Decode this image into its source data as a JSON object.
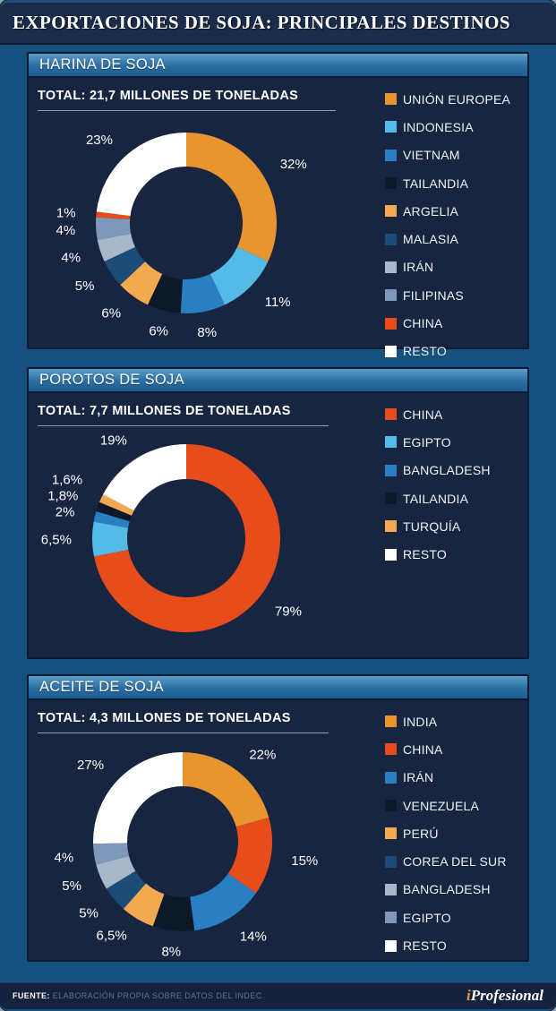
{
  "page": {
    "title": "EXPORTACIONES DE SOJA: PRINCIPALES DESTINOS",
    "footer": {
      "source_label": "FUENTE:",
      "source_text": "ELABORACIÓN PROPIA SOBRE DATOS DEL INDEC",
      "brand_i": "i",
      "brand_rest": "Profesional"
    }
  },
  "colors": {
    "background_blue": "#15507E",
    "panel_body": "#172540",
    "title_band": "#1B2B4A",
    "footer_band": "#14223C",
    "accent_orange": "#E8942F",
    "accent_red": "#E74C1B",
    "text_white": "#FFFFFF"
  },
  "chart_data": [
    {
      "type": "pie",
      "variant": "donut",
      "section_title": "HARINA DE SOJA",
      "total_label": "TOTAL: 21,7 MILLONES DE TONELADAS",
      "total_millones_toneladas": 21.7,
      "legend_position": "right",
      "start_angle_deg": 0,
      "direction": "clockwise",
      "categories": [
        "UNIÓN EUROPEA",
        "INDONESIA",
        "VIETNAM",
        "TAILANDIA",
        "ARGELIA",
        "MALASIA",
        "IRÁN",
        "FILIPINAS",
        "CHINA",
        "RESTO"
      ],
      "values": [
        32,
        11,
        8,
        6,
        6,
        5,
        4,
        4,
        1,
        23
      ],
      "labels": [
        "32%",
        "11%",
        "8%",
        "6%",
        "6%",
        "5%",
        "4%",
        "4%",
        "1%",
        "23%"
      ],
      "colors": [
        "#E8942F",
        "#54BBE8",
        "#2A7FC3",
        "#0D1929",
        "#F3A94F",
        "#1B4B77",
        "#A7B8CB",
        "#7D98BA",
        "#E74C1B",
        "#FFFFFF"
      ]
    },
    {
      "type": "pie",
      "variant": "donut",
      "section_title": "POROTOS DE SOJA",
      "total_label": "TOTAL: 7,7 MILLONES DE TONELADAS",
      "total_millones_toneladas": 7.7,
      "legend_position": "right",
      "start_angle_deg": 0,
      "direction": "clockwise",
      "categories": [
        "CHINA",
        "EGIPTO",
        "BANGLADESH",
        "TAILANDIA",
        "TURQUÍA",
        "RESTO"
      ],
      "values": [
        79,
        6.5,
        2,
        1.8,
        1.6,
        19
      ],
      "labels": [
        "79%",
        "6,5%",
        "2%",
        "1,8%",
        "1,6%",
        "19%"
      ],
      "colors": [
        "#E74C1B",
        "#54BBE8",
        "#2A7FC3",
        "#0D1929",
        "#F3A94F",
        "#FFFFFF"
      ]
    },
    {
      "type": "pie",
      "variant": "donut",
      "section_title": "ACEITE DE SOJA",
      "total_label": "TOTAL: 4,3 MILLONES DE TONELADAS",
      "total_millones_toneladas": 4.3,
      "legend_position": "right",
      "start_angle_deg": 0,
      "direction": "clockwise",
      "categories": [
        "INDIA",
        "CHINA",
        "IRÁN",
        "VENEZUELA",
        "PERÚ",
        "COREA DEL SUR",
        "BANGLADESH",
        "EGIPTO",
        "RESTO"
      ],
      "values": [
        22,
        15,
        14,
        8,
        6.5,
        5,
        5,
        4,
        27
      ],
      "labels": [
        "22%",
        "15%",
        "14%",
        "8%",
        "6,5%",
        "5%",
        "5%",
        "4%",
        "27%"
      ],
      "colors": [
        "#E8942F",
        "#E74C1B",
        "#2A7FC3",
        "#0D1929",
        "#F3A94F",
        "#1B4B77",
        "#A7B8CB",
        "#7D98BA",
        "#FFFFFF"
      ]
    }
  ]
}
